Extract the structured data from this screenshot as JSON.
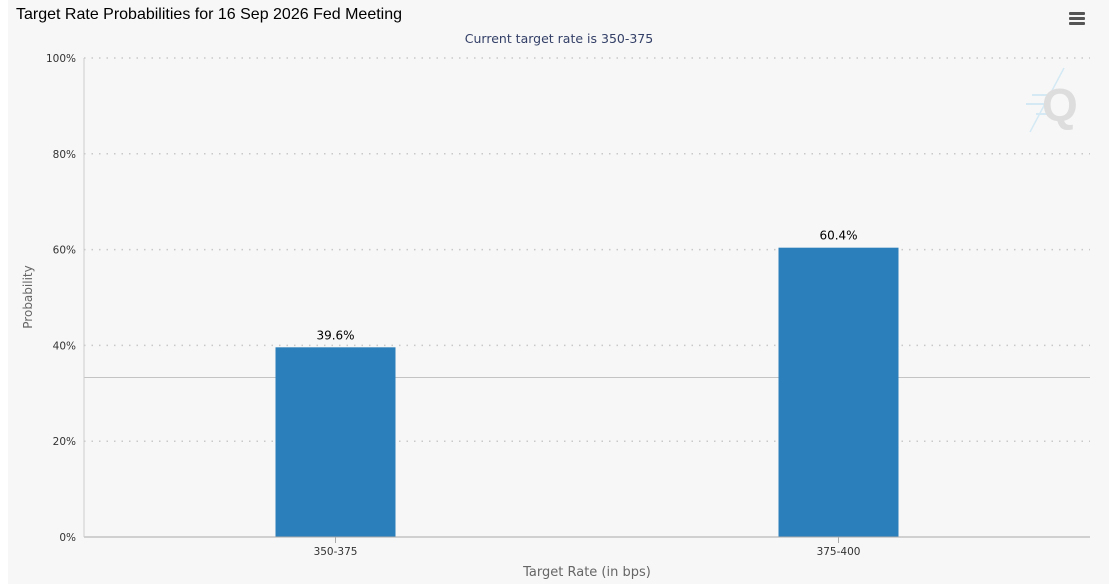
{
  "header": {
    "title": "Target Rate Probabilities for 16 Sep 2026 Fed Meeting",
    "subtitle": "Current target rate is 350-375",
    "menu_icon": "hamburger-menu-icon",
    "watermark_icon": "q-logo-icon"
  },
  "chart_data": {
    "type": "bar",
    "title": "Target Rate Probabilities for 16 Sep 2026 Fed Meeting",
    "subtitle": "Current target rate is 350-375",
    "xlabel": "Target Rate (in bps)",
    "ylabel": "Probability",
    "categories": [
      "350-375",
      "375-400"
    ],
    "values": [
      39.6,
      60.4
    ],
    "data_labels": [
      "39.6%",
      "60.4%"
    ],
    "ylim": [
      0,
      100
    ],
    "yticks": [
      0,
      20,
      40,
      60,
      80,
      100
    ],
    "ytick_labels": [
      "0%",
      "20%",
      "40%",
      "60%",
      "80%",
      "100%"
    ],
    "reference_line": 33.3,
    "grid": true,
    "bar_color": "#2b7fba"
  }
}
